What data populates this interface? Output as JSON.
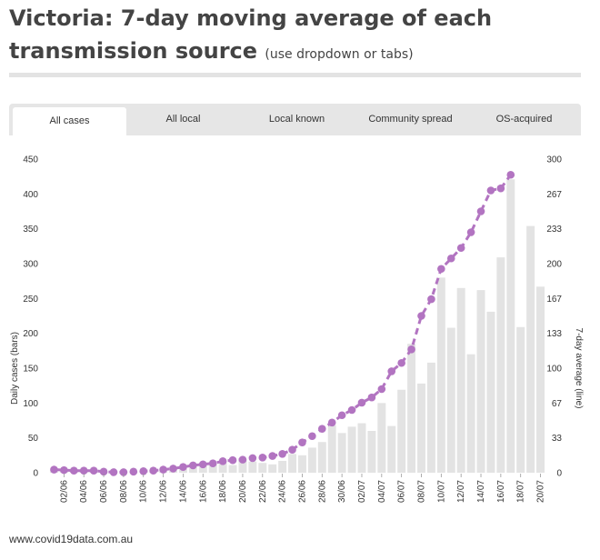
{
  "header": {
    "title": "Victoria: 7-day moving average of each transmission source",
    "subtitle": "(use dropdown or tabs)"
  },
  "tabs": [
    {
      "label": "All cases",
      "active": true
    },
    {
      "label": "All local",
      "active": false
    },
    {
      "label": "Local known",
      "active": false
    },
    {
      "label": "Community spread",
      "active": false
    },
    {
      "label": "OS-acquired",
      "active": false
    }
  ],
  "footer": {
    "source": "www.covid19data.com.au"
  },
  "colors": {
    "bars": "#e3e3e3",
    "line": "#b274c1",
    "text": "#333333"
  },
  "chart_data": {
    "type": "bar+line",
    "title": "Victoria: 7-day moving average of each transmission source",
    "ylabel_left": "Daily cases (bars)",
    "ylabel_right": "7-day average (line)",
    "ylim_left": [
      0,
      450
    ],
    "ylim_right": [
      0,
      300
    ],
    "yticks_left": [
      "0",
      "50",
      "100",
      "150",
      "200",
      "250",
      "300",
      "350",
      "400",
      "450"
    ],
    "yticks_right": [
      "0",
      "33",
      "67",
      "100",
      "133",
      "167",
      "200",
      "233",
      "267",
      "300"
    ],
    "xtick_labels": [
      "02/06",
      "04/06",
      "06/06",
      "08/06",
      "10/06",
      "12/06",
      "14/06",
      "16/06",
      "18/06",
      "20/06",
      "22/06",
      "24/06",
      "26/06",
      "28/06",
      "30/06",
      "02/07",
      "04/07",
      "06/07",
      "08/07",
      "10/07",
      "12/07",
      "14/07",
      "16/07",
      "18/07",
      "20/07"
    ],
    "dates": [
      "01/06",
      "02/06",
      "03/06",
      "04/06",
      "05/06",
      "06/06",
      "07/06",
      "08/06",
      "09/06",
      "10/06",
      "11/06",
      "12/06",
      "13/06",
      "14/06",
      "15/06",
      "16/06",
      "17/06",
      "18/06",
      "19/06",
      "20/06",
      "21/06",
      "22/06",
      "23/06",
      "24/06",
      "25/06",
      "26/06",
      "27/06",
      "28/06",
      "29/06",
      "30/06",
      "01/07",
      "02/07",
      "03/07",
      "04/07",
      "05/07",
      "06/07",
      "07/07",
      "08/07",
      "09/07",
      "10/07",
      "11/07",
      "12/07",
      "13/07",
      "14/07",
      "15/07",
      "16/07",
      "17/07",
      "18/07",
      "19/07",
      "20/07"
    ],
    "series": [
      {
        "name": "Daily cases",
        "type": "bar",
        "axis": "left",
        "values": [
          4,
          2,
          2,
          1,
          1,
          1,
          1,
          1,
          2,
          3,
          4,
          4,
          6,
          6,
          8,
          10,
          13,
          14,
          11,
          18,
          16,
          14,
          12,
          17,
          27,
          25,
          36,
          44,
          68,
          57,
          66,
          71,
          60,
          100,
          67,
          119,
          185,
          128,
          158,
          280,
          208,
          265,
          170,
          262,
          231,
          309,
          421,
          209,
          354,
          267
        ]
      },
      {
        "name": "7-day average",
        "type": "line",
        "axis": "right",
        "values": [
          3,
          2.5,
          2,
          2,
          2,
          1,
          0.5,
          0.5,
          1,
          1.5,
          2,
          3,
          4,
          5.5,
          7,
          8,
          9,
          11,
          12,
          12.5,
          14,
          14.5,
          16,
          18,
          22,
          29,
          35,
          42,
          48,
          55,
          60,
          67,
          72,
          80,
          97,
          105,
          118,
          150,
          166,
          195,
          205,
          215,
          230,
          250,
          270,
          272,
          285,
          null,
          null,
          null
        ]
      }
    ]
  }
}
